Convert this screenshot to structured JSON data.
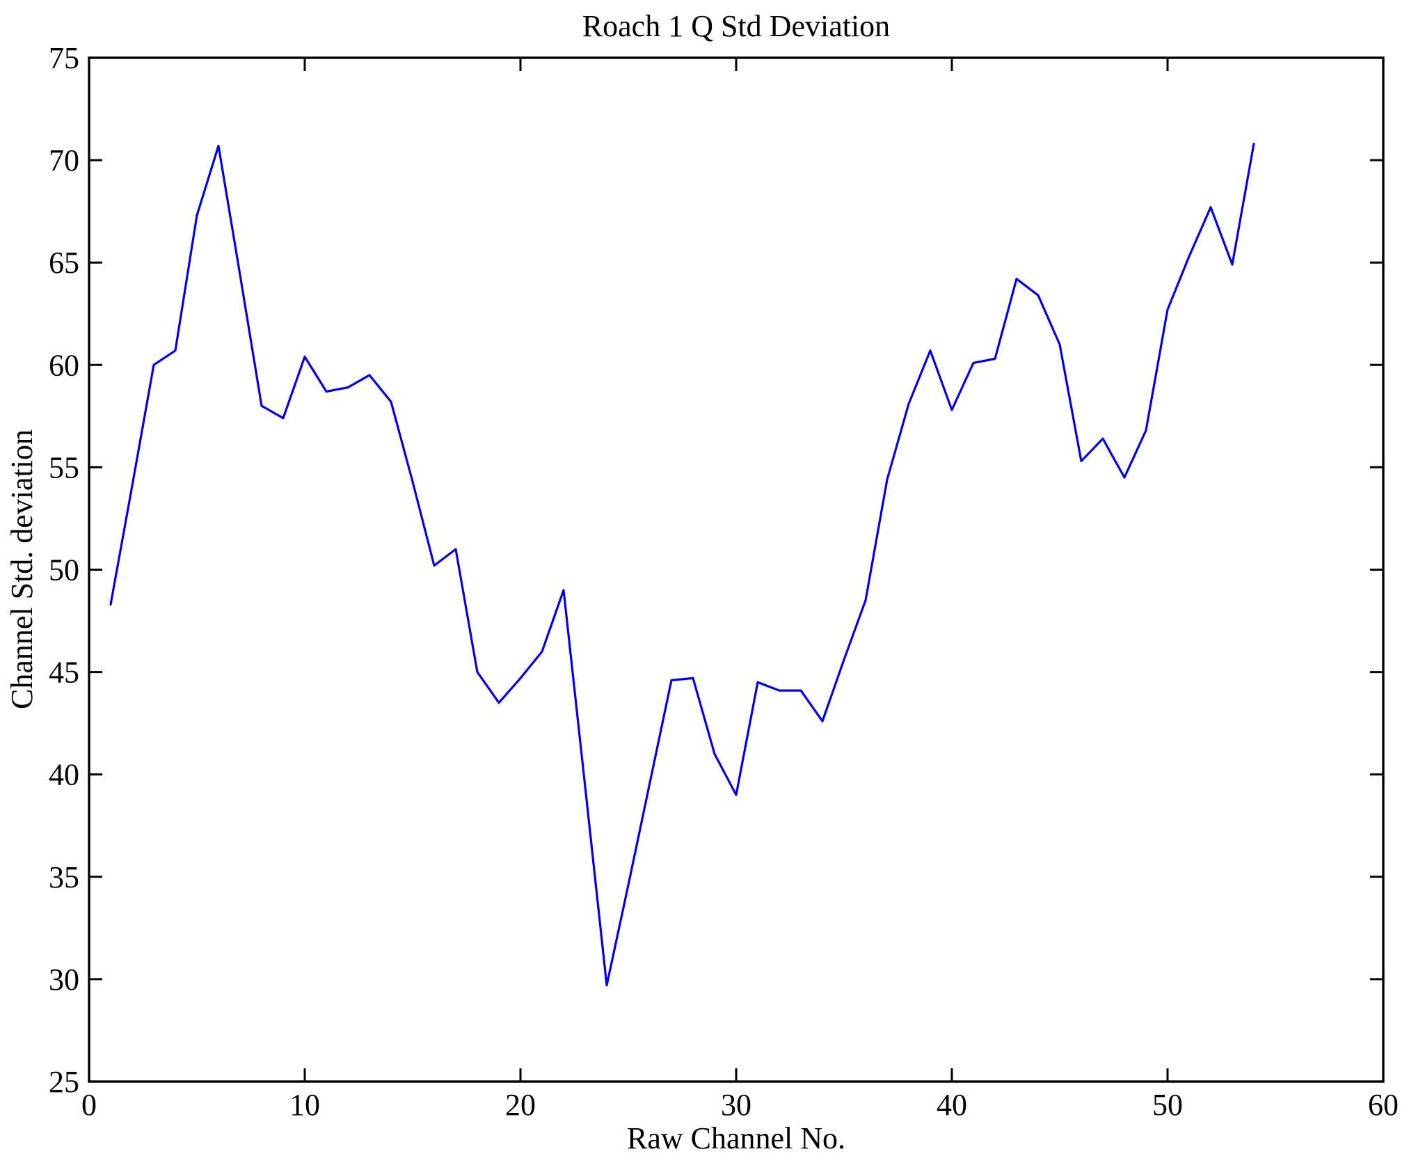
{
  "figure": {
    "background": "#ffffff",
    "axis_color": "#000000"
  },
  "chart_data": {
    "type": "line",
    "title": "Roach 1 Q Std Deviation",
    "xlabel": "Raw Channel No.",
    "ylabel": "Channel Std. deviation",
    "xlim": [
      0,
      60
    ],
    "ylim": [
      25,
      75
    ],
    "xticks": [
      0,
      10,
      20,
      30,
      40,
      50,
      60
    ],
    "yticks": [
      25,
      30,
      35,
      40,
      45,
      50,
      55,
      60,
      65,
      70,
      75
    ],
    "grid": false,
    "legend": "none",
    "box": true,
    "series": [
      {
        "name": "channel-std-deviation",
        "color": "#0000EE",
        "x": [
          1,
          2,
          3,
          4,
          5,
          6,
          7,
          8,
          9,
          10,
          11,
          12,
          13,
          14,
          15,
          16,
          17,
          18,
          19,
          20,
          21,
          22,
          23,
          24,
          25,
          26,
          27,
          28,
          29,
          30,
          31,
          32,
          33,
          34,
          35,
          36,
          37,
          38,
          39,
          40,
          41,
          42,
          43,
          44,
          45,
          46,
          47,
          48,
          49,
          50,
          51,
          52,
          53,
          54
        ],
        "y": [
          48.3,
          54.1,
          60.0,
          60.7,
          67.3,
          70.7,
          64.4,
          58.0,
          57.4,
          60.4,
          58.7,
          58.9,
          59.5,
          58.2,
          54.3,
          50.2,
          51.0,
          45.0,
          43.5,
          44.7,
          46.0,
          49.0,
          39.4,
          29.7,
          34.6,
          39.6,
          44.6,
          44.7,
          41.0,
          39.0,
          44.5,
          44.1,
          44.1,
          42.6,
          45.6,
          48.5,
          54.4,
          58.1,
          60.7,
          57.8,
          60.1,
          60.3,
          64.2,
          63.4,
          61.0,
          55.3,
          56.4,
          54.5,
          56.8,
          62.7,
          65.3,
          67.7,
          64.9,
          70.8
        ]
      }
    ]
  }
}
